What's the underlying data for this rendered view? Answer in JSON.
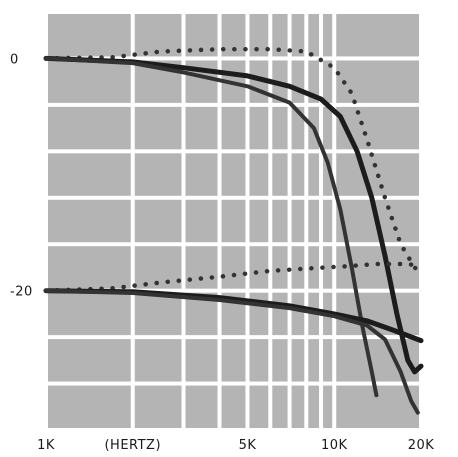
{
  "chart_data": {
    "type": "line",
    "x_scale": "log",
    "x_unit_label": "(HERTZ)",
    "xlim": [
      1000,
      20000
    ],
    "ylim": [
      -32,
      4
    ],
    "grid": true,
    "x_tick_labels": [
      {
        "value": 1000,
        "label": "1K"
      },
      {
        "value": 5000,
        "label": "5K"
      },
      {
        "value": 10000,
        "label": "10K"
      },
      {
        "value": 20000,
        "label": "20K"
      }
    ],
    "y_tick_labels": [
      {
        "value": 0,
        "label": "0"
      },
      {
        "value": -20,
        "label": "-20"
      }
    ],
    "colors": {
      "grid_cell": "#b4b4b4",
      "background": "#ffffff",
      "curve": "#1c1c1c",
      "curve_alt": "#333333"
    },
    "series": [
      {
        "style": "dotted",
        "points": [
          [
            1000,
            0
          ],
          [
            1700,
            0.1
          ],
          [
            2500,
            0.6
          ],
          [
            4000,
            0.8
          ],
          [
            6000,
            0.8
          ],
          [
            8000,
            0.6
          ],
          [
            10000,
            -0.8
          ],
          [
            11500,
            -3
          ],
          [
            13000,
            -7
          ],
          [
            15000,
            -12
          ],
          [
            17000,
            -16
          ],
          [
            19000,
            -18
          ],
          [
            20000,
            -18.5
          ]
        ]
      },
      {
        "style": "solid-thick",
        "points": [
          [
            1000,
            0
          ],
          [
            2000,
            -0.3
          ],
          [
            3000,
            -0.8
          ],
          [
            5000,
            -1.5
          ],
          [
            7000,
            -2.4
          ],
          [
            9000,
            -3.5
          ],
          [
            10500,
            -5
          ],
          [
            12000,
            -8
          ],
          [
            13500,
            -12
          ],
          [
            15000,
            -17
          ],
          [
            16500,
            -22
          ],
          [
            18000,
            -26
          ],
          [
            19000,
            -27
          ],
          [
            20000,
            -26.5
          ]
        ]
      },
      {
        "style": "solid",
        "points": [
          [
            1000,
            0
          ],
          [
            2000,
            -0.4
          ],
          [
            3000,
            -1.2
          ],
          [
            5000,
            -2.4
          ],
          [
            7000,
            -3.8
          ],
          [
            8500,
            -6
          ],
          [
            9500,
            -9
          ],
          [
            10500,
            -13
          ],
          [
            11500,
            -18
          ],
          [
            12500,
            -23
          ],
          [
            13500,
            -27
          ],
          [
            14000,
            -29
          ]
        ]
      },
      {
        "style": "dotted",
        "points": [
          [
            1000,
            -20
          ],
          [
            1700,
            -19.8
          ],
          [
            2500,
            -19.3
          ],
          [
            4000,
            -18.8
          ],
          [
            6000,
            -18.3
          ],
          [
            8000,
            -18.1
          ],
          [
            11000,
            -17.9
          ],
          [
            14000,
            -17.7
          ],
          [
            17000,
            -17.7
          ],
          [
            20000,
            -17.8
          ]
        ]
      },
      {
        "style": "solid-thick",
        "points": [
          [
            1000,
            -20
          ],
          [
            2000,
            -20.1
          ],
          [
            4000,
            -20.6
          ],
          [
            7000,
            -21.3
          ],
          [
            10000,
            -22
          ],
          [
            13000,
            -22.6
          ],
          [
            16000,
            -23.4
          ],
          [
            20000,
            -24.3
          ]
        ]
      },
      {
        "style": "solid",
        "points": [
          [
            1000,
            -20
          ],
          [
            2000,
            -20.2
          ],
          [
            4000,
            -20.8
          ],
          [
            7000,
            -21.5
          ],
          [
            10000,
            -22.2
          ],
          [
            13000,
            -23
          ],
          [
            15000,
            -24.2
          ],
          [
            17000,
            -27
          ],
          [
            18500,
            -29.5
          ],
          [
            19500,
            -30.5
          ]
        ]
      }
    ]
  }
}
